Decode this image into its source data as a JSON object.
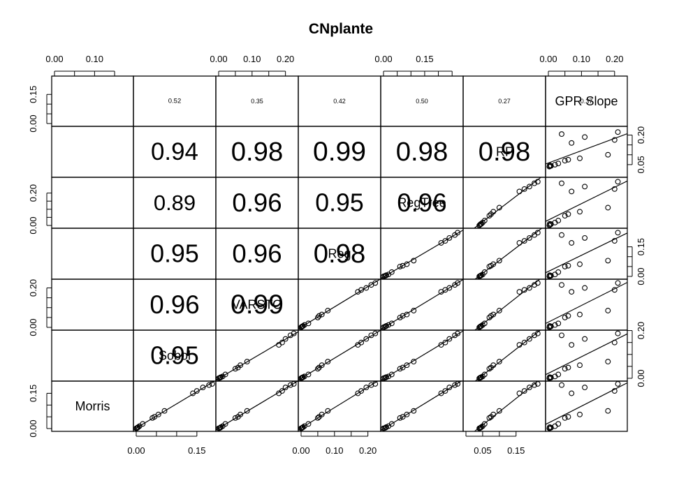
{
  "chart_data": {
    "type": "scatter-matrix",
    "title": "CNplante",
    "variables": [
      "Morris",
      "Sobol",
      "VARSTO",
      "Reg",
      "RegTree",
      "RF",
      "GPR Slope"
    ],
    "ranges": [
      [
        0,
        0.19
      ],
      [
        0,
        0.19
      ],
      [
        0,
        0.23
      ],
      [
        0,
        0.23
      ],
      [
        0,
        0.28
      ],
      [
        0,
        0.23
      ],
      [
        0,
        0.23
      ]
    ],
    "axis_ticks": {
      "top": [
        {
          "var": 0,
          "ticks": [
            0,
            0.05,
            0.1,
            0.15
          ],
          "labels": [
            "0.00",
            "0.10"
          ],
          "label_values": [
            0,
            0.1
          ]
        },
        {
          "var": 2,
          "ticks": [
            0,
            0.05,
            0.1,
            0.15,
            0.2
          ],
          "labels": [
            "0.00",
            "0.10",
            "0.20"
          ],
          "label_values": [
            0,
            0.1,
            0.2
          ]
        },
        {
          "var": 4,
          "ticks": [
            0,
            0.05,
            0.1,
            0.15,
            0.2,
            0.25
          ],
          "labels": [
            "0.00",
            "0.15"
          ],
          "label_values": [
            0,
            0.15
          ]
        },
        {
          "var": 6,
          "ticks": [
            0,
            0.05,
            0.1,
            0.15,
            0.2
          ],
          "labels": [
            "0.00",
            "0.10",
            "0.20"
          ],
          "label_values": [
            0,
            0.1,
            0.2
          ]
        }
      ],
      "bottom": [
        {
          "var": 1,
          "ticks": [
            0,
            0.05,
            0.1,
            0.15
          ],
          "labels": [
            "0.00",
            "0.15"
          ],
          "label_values": [
            0,
            0.15
          ]
        },
        {
          "var": 3,
          "ticks": [
            0,
            0.05,
            0.1,
            0.15,
            0.2
          ],
          "labels": [
            "0.00",
            "0.10",
            "0.20"
          ],
          "label_values": [
            0,
            0.1,
            0.2
          ]
        },
        {
          "var": 5,
          "ticks": [
            0,
            0.05,
            0.1,
            0.15
          ],
          "labels": [
            "0.05",
            "0.15"
          ],
          "label_values": [
            0.05,
            0.15
          ]
        }
      ],
      "left": [
        {
          "var": 0,
          "ticks": [
            0,
            0.05,
            0.1,
            0.15
          ],
          "labels": [
            "0.15",
            "0.00"
          ],
          "label_values": [
            0.15,
            0
          ]
        },
        {
          "var": 2,
          "ticks": [
            0,
            0.05,
            0.1,
            0.15,
            0.2
          ],
          "labels": [
            "0.20",
            "0.00"
          ],
          "label_values": [
            0.2,
            0
          ]
        },
        {
          "var": 4,
          "ticks": [
            0,
            0.05,
            0.1,
            0.15,
            0.2
          ],
          "labels": [
            "0.20",
            "0.00"
          ],
          "label_values": [
            0.2,
            0
          ]
        },
        {
          "var": 6,
          "ticks": [
            0,
            0.05,
            0.1,
            0.15
          ],
          "labels": [
            "0.15",
            "0.00"
          ],
          "label_values": [
            0.15,
            0
          ]
        }
      ],
      "right": [
        {
          "var": 1,
          "ticks": [
            0,
            0.05,
            0.1,
            0.15,
            0.2
          ],
          "labels": [
            "0.20",
            "0.00"
          ],
          "label_values": [
            0.2,
            0
          ]
        },
        {
          "var": 3,
          "ticks": [
            0,
            0.05,
            0.1,
            0.15
          ],
          "labels": [
            "0.15",
            "0.00"
          ],
          "label_values": [
            0.15,
            0
          ]
        },
        {
          "var": 5,
          "ticks": [
            0.05,
            0.1,
            0.15,
            0.2
          ],
          "labels": [
            "0.20",
            "0.05"
          ],
          "label_values": [
            0.2,
            0.05
          ]
        }
      ]
    },
    "correlations": [
      {
        "row": 0,
        "col": 1,
        "text": "0.52"
      },
      {
        "row": 0,
        "col": 2,
        "text": "0.35"
      },
      {
        "row": 0,
        "col": 3,
        "text": "0.42"
      },
      {
        "row": 0,
        "col": 4,
        "text": "0.50"
      },
      {
        "row": 0,
        "col": 5,
        "text": "0.27"
      },
      {
        "row": 0,
        "col": 6,
        "text": "0.37"
      },
      {
        "row": 1,
        "col": 1,
        "text": "0.94"
      },
      {
        "row": 1,
        "col": 2,
        "text": "0.98"
      },
      {
        "row": 1,
        "col": 3,
        "text": "0.99"
      },
      {
        "row": 1,
        "col": 4,
        "text": "0.98"
      },
      {
        "row": 1,
        "col": 5,
        "text": "0.98"
      },
      {
        "row": 2,
        "col": 1,
        "text": "0.89"
      },
      {
        "row": 2,
        "col": 2,
        "text": "0.96"
      },
      {
        "row": 2,
        "col": 3,
        "text": "0.95"
      },
      {
        "row": 2,
        "col": 4,
        "text": "0.96"
      },
      {
        "row": 3,
        "col": 1,
        "text": "0.95"
      },
      {
        "row": 3,
        "col": 2,
        "text": "0.96"
      },
      {
        "row": 3,
        "col": 3,
        "text": "0.98"
      },
      {
        "row": 4,
        "col": 1,
        "text": "0.96"
      },
      {
        "row": 4,
        "col": 2,
        "text": "0.99"
      },
      {
        "row": 5,
        "col": 1,
        "text": "0.95"
      }
    ],
    "observations": [
      [
        0.001,
        0.0,
        0.0,
        0.0,
        0.0,
        0.04,
        0.003
      ],
      [
        0.002,
        0.002,
        0.003,
        0.002,
        0.004,
        0.042,
        0.005
      ],
      [
        0.004,
        0.003,
        0.005,
        0.004,
        0.008,
        0.044,
        0.008
      ],
      [
        0.006,
        0.005,
        0.007,
        0.006,
        0.01,
        0.046,
        0.004
      ],
      [
        0.01,
        0.008,
        0.012,
        0.01,
        0.018,
        0.05,
        0.02
      ],
      [
        0.02,
        0.016,
        0.02,
        0.022,
        0.03,
        0.056,
        0.03
      ],
      [
        0.045,
        0.04,
        0.05,
        0.05,
        0.06,
        0.07,
        0.05
      ],
      [
        0.05,
        0.045,
        0.058,
        0.054,
        0.07,
        0.075,
        0.06
      ],
      [
        0.06,
        0.055,
        0.065,
        0.062,
        0.085,
        0.082,
        0.095
      ],
      [
        0.075,
        0.07,
        0.085,
        0.08,
        0.11,
        0.1,
        0.18
      ],
      [
        0.15,
        0.14,
        0.18,
        0.17,
        0.21,
        0.16,
        0.07
      ],
      [
        0.16,
        0.15,
        0.19,
        0.18,
        0.225,
        0.175,
        0.2
      ],
      [
        0.175,
        0.165,
        0.2,
        0.195,
        0.24,
        0.19,
        0.11
      ],
      [
        0.185,
        0.18,
        0.215,
        0.21,
        0.26,
        0.205,
        0.04
      ],
      [
        0.19,
        0.188,
        0.225,
        0.222,
        0.27,
        0.215,
        0.21
      ]
    ]
  }
}
